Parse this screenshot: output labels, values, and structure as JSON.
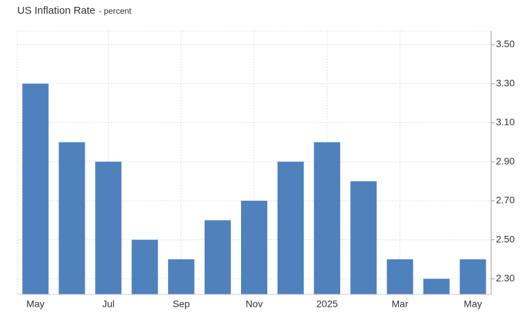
{
  "chart_data": {
    "type": "bar",
    "title": "US Inflation Rate",
    "subtitle": "- percent",
    "categories": [
      "May",
      null,
      "Jul",
      null,
      "Sep",
      null,
      "Nov",
      null,
      "2025",
      null,
      "Mar",
      null,
      "May"
    ],
    "values": [
      3.3,
      3.0,
      2.9,
      2.5,
      2.4,
      2.6,
      2.7,
      2.9,
      3.0,
      2.8,
      2.4,
      2.3,
      2.4
    ],
    "color": "#4f81bd",
    "ylim": [
      2.22,
      3.57
    ],
    "yticks": [
      {
        "value": 2.3,
        "label": "2.30"
      },
      {
        "value": 2.5,
        "label": "2.50"
      },
      {
        "value": 2.7,
        "label": "2.70"
      },
      {
        "value": 2.9,
        "label": "2.90"
      },
      {
        "value": 3.1,
        "label": "3.10"
      },
      {
        "value": 3.3,
        "label": "3.30"
      },
      {
        "value": 3.5,
        "label": "3.50"
      }
    ],
    "grid": true
  }
}
